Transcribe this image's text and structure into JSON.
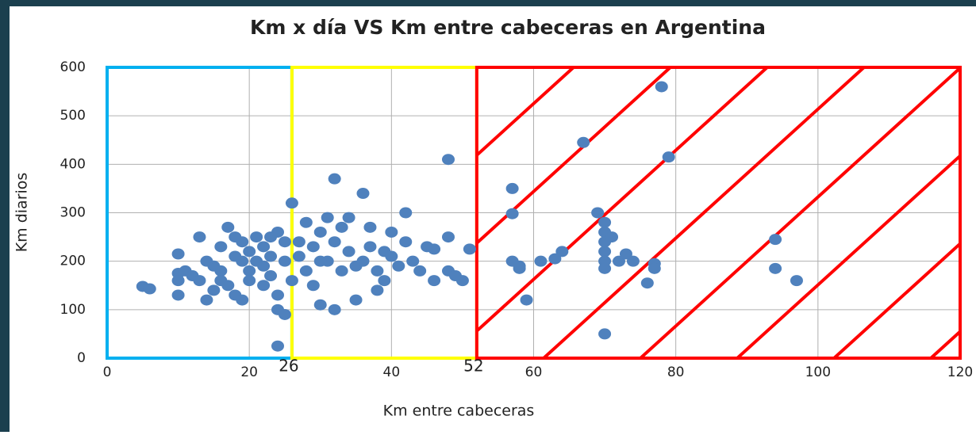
{
  "chart_data": {
    "type": "scatter",
    "title": "Km x día VS Km entre cabeceras en Argentina",
    "xlabel": "Km entre cabeceras",
    "ylabel": "Km diarios",
    "color": "#4f81bd",
    "x": [
      5,
      6,
      10,
      10,
      10,
      10,
      11,
      12,
      13,
      13,
      14,
      15,
      15,
      16,
      16,
      17,
      17,
      18,
      18,
      19,
      19,
      20,
      20,
      20,
      21,
      21,
      22,
      22,
      23,
      23,
      24,
      24,
      24,
      24,
      25,
      25,
      25,
      26,
      26,
      14,
      16,
      18,
      19,
      22,
      23,
      27,
      28,
      28,
      29,
      29,
      30,
      30,
      31,
      31,
      32,
      32,
      32,
      33,
      33,
      34,
      34,
      35,
      35,
      36,
      36,
      37,
      37,
      38,
      38,
      39,
      39,
      40,
      40,
      41,
      42,
      42,
      43,
      44,
      45,
      46,
      46,
      48,
      48,
      48,
      49,
      50,
      51,
      30,
      27,
      57,
      57,
      57,
      58,
      58,
      59,
      61,
      63,
      64,
      67,
      69,
      70,
      70,
      70,
      70,
      70,
      70,
      70,
      71,
      72,
      73,
      74,
      76,
      77,
      77,
      78,
      79,
      94,
      94,
      97
    ],
    "y": [
      148,
      143,
      215,
      175,
      160,
      130,
      180,
      170,
      250,
      160,
      120,
      190,
      140,
      230,
      180,
      270,
      150,
      210,
      130,
      200,
      240,
      220,
      180,
      160,
      250,
      200,
      190,
      230,
      210,
      170,
      260,
      130,
      100,
      25,
      90,
      200,
      240,
      320,
      160,
      200,
      160,
      250,
      120,
      150,
      250,
      210,
      280,
      180,
      230,
      150,
      260,
      110,
      200,
      290,
      240,
      370,
      100,
      270,
      180,
      220,
      290,
      190,
      120,
      340,
      200,
      230,
      270,
      180,
      140,
      220,
      160,
      260,
      210,
      190,
      240,
      300,
      200,
      180,
      230,
      160,
      225,
      410,
      250,
      180,
      170,
      160,
      225,
      200,
      240,
      350,
      298,
      200,
      185,
      190,
      120,
      200,
      205,
      220,
      445,
      300,
      280,
      260,
      240,
      220,
      200,
      185,
      50,
      250,
      200,
      215,
      200,
      155,
      195,
      185,
      560,
      415,
      245,
      185,
      160
    ],
    "xlim": [
      0,
      120
    ],
    "ylim": [
      0,
      600
    ],
    "xticks": [
      0,
      20,
      40,
      60,
      80,
      100,
      120
    ],
    "yticks": [
      0,
      100,
      200,
      300,
      400,
      500,
      600
    ],
    "grid": true,
    "regions": [
      {
        "xlim": [
          0,
          26
        ],
        "color": "#00b0f0",
        "hatch": false
      },
      {
        "xlim": [
          26,
          52
        ],
        "color": "#ffff00",
        "hatch": false
      },
      {
        "xlim": [
          52,
          120
        ],
        "color": "#ff0000",
        "hatch": true
      }
    ]
  }
}
